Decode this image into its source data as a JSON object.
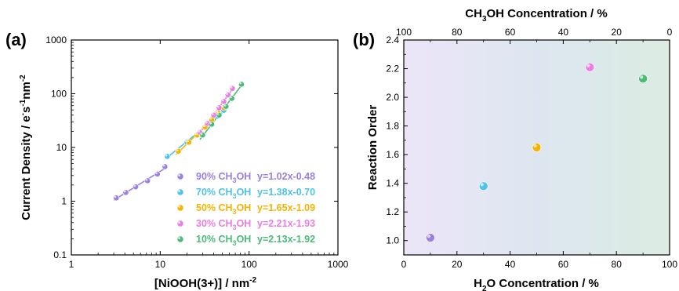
{
  "chart_data": [
    {
      "panel": "(a)",
      "type": "scatter",
      "xlabel": "[NiOOH(3+)] / nm",
      "xlabel_sup": "-2",
      "ylabel": "Current Density / e",
      "ylabel_parts": [
        "Current Density / e",
        "-",
        "s",
        "-1",
        "nm",
        "-2"
      ],
      "x_scale": "log",
      "y_scale": "log",
      "xlim": [
        1,
        1000
      ],
      "ylim": [
        0.1,
        1000
      ],
      "x_ticks": [
        1,
        10,
        100,
        1000
      ],
      "x_tick_labels": [
        "1",
        "10",
        "100",
        "1000"
      ],
      "y_ticks": [
        0.1,
        1,
        10,
        100,
        1000
      ],
      "y_tick_labels": [
        "0.1",
        "1",
        "10",
        "100",
        "1000"
      ],
      "legend_position": "bottom-right",
      "series": [
        {
          "name": "90% CH3OH",
          "name_parts": [
            "90% CH",
            "3",
            "OH"
          ],
          "fit_label": "y=1.02x-0.48",
          "slope": 1.02,
          "intercept": -0.48,
          "color": "#9b80e0",
          "x": [
            3.2,
            4.1,
            5.3,
            7.2,
            9.3,
            11.3
          ],
          "y": [
            1.15,
            1.45,
            1.85,
            2.4,
            3.2,
            4.4
          ],
          "fit_x": [
            3.0,
            11.5
          ]
        },
        {
          "name": "70% CH3OH",
          "name_parts": [
            "70% CH",
            "3",
            "OH"
          ],
          "fit_label": "y=1.38x-0.70",
          "slope": 1.38,
          "intercept": -0.7,
          "color": "#4fc3e6",
          "x": [
            12.0,
            20.0,
            28.0,
            36.0,
            44.0,
            52.0
          ],
          "y": [
            6.8,
            12.5,
            19.5,
            28.0,
            38.0,
            49.0
          ],
          "fit_x": [
            11.5,
            56.0
          ]
        },
        {
          "name": "50% CH3OH",
          "name_parts": [
            "50% CH",
            "3",
            "OH"
          ],
          "fit_label": "y=1.65x-1.09",
          "slope": 1.65,
          "intercept": -1.09,
          "color": "#f4b400",
          "x": [
            16.0,
            21.0,
            26.0,
            32.0,
            38.0,
            45.0,
            52.0
          ],
          "y": [
            8.5,
            12.5,
            17.0,
            24.0,
            33.0,
            44.0,
            55.0
          ],
          "fit_x": [
            15.0,
            55.0
          ]
        },
        {
          "name": "30% CH3OH",
          "name_parts": [
            "30% CH",
            "3",
            "OH"
          ],
          "fit_label": "y=2.21x-1.93",
          "slope": 2.21,
          "intercept": -1.93,
          "color": "#e87ee0",
          "x": [
            28.0,
            34.0,
            40.0,
            46.0,
            52.0,
            58.0,
            65.0
          ],
          "y": [
            19.0,
            28.0,
            40.0,
            55.0,
            72.0,
            95.0,
            125.0
          ],
          "fit_x": [
            27.0,
            68.0
          ]
        },
        {
          "name": "10% CH3OH",
          "name_parts": [
            "10% CH",
            "3",
            "OH"
          ],
          "fit_label": "y=2.13x-1.92",
          "slope": 2.13,
          "intercept": -1.92,
          "color": "#4cba78",
          "x": [
            30.0,
            38.0,
            46.0,
            55.0,
            64.0,
            82.0
          ],
          "y": [
            17.0,
            27.0,
            40.0,
            58.0,
            82.0,
            150.0
          ],
          "fit_x": [
            28.0,
            84.0
          ]
        }
      ]
    },
    {
      "panel": "(b)",
      "type": "scatter",
      "xlabel_parts": [
        "H",
        "2",
        "O Concentration / %"
      ],
      "x2label_parts": [
        "CH",
        "3",
        "OH Concentration / %"
      ],
      "ylabel": "Reaction Order",
      "xlim": [
        0,
        100
      ],
      "ylim": [
        0.9,
        2.4
      ],
      "x_ticks": [
        0,
        20,
        40,
        60,
        80,
        100
      ],
      "x_tick_labels": [
        "0",
        "20",
        "40",
        "60",
        "80",
        "100"
      ],
      "x2_ticks": [
        0,
        20,
        40,
        60,
        80,
        100
      ],
      "x2_tick_labels": [
        "100",
        "80",
        "60",
        "40",
        "20",
        "0"
      ],
      "y_ticks": [
        1.0,
        1.2,
        1.4,
        1.6,
        1.8,
        2.0,
        2.2,
        2.4
      ],
      "y_tick_labels": [
        "1.0",
        "1.2",
        "1.4",
        "1.6",
        "1.8",
        "2.0",
        "2.2",
        "2.4"
      ],
      "background_gradient": [
        "#ece5f8",
        "#dde6f0",
        "#dcece2"
      ],
      "points": [
        {
          "x": 10,
          "y": 1.02,
          "color": "#9b80e0"
        },
        {
          "x": 30,
          "y": 1.38,
          "color": "#4fc3e6"
        },
        {
          "x": 50,
          "y": 1.65,
          "color": "#f4b400"
        },
        {
          "x": 70,
          "y": 2.21,
          "color": "#e87ee0"
        },
        {
          "x": 90,
          "y": 2.13,
          "color": "#4cba78"
        }
      ]
    }
  ]
}
